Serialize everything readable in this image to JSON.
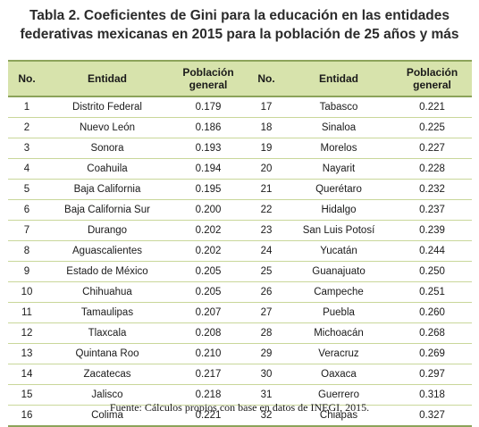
{
  "title": {
    "line1": "Tabla 2. Coeficientes de Gini para la educación en las entidades",
    "line2": "federativas mexicanas en 2015 para la población de 25 años y más"
  },
  "headers": {
    "no": "No.",
    "entidad": "Entidad",
    "poblacion_line1": "Población",
    "poblacion_line2": "general"
  },
  "rows": [
    {
      "left": {
        "no": "1",
        "entidad": "Distrito Federal",
        "valor": "0.179"
      },
      "right": {
        "no": "17",
        "entidad": "Tabasco",
        "valor": "0.221"
      }
    },
    {
      "left": {
        "no": "2",
        "entidad": "Nuevo León",
        "valor": "0.186"
      },
      "right": {
        "no": "18",
        "entidad": "Sinaloa",
        "valor": "0.225"
      }
    },
    {
      "left": {
        "no": "3",
        "entidad": "Sonora",
        "valor": "0.193"
      },
      "right": {
        "no": "19",
        "entidad": "Morelos",
        "valor": "0.227"
      }
    },
    {
      "left": {
        "no": "4",
        "entidad": "Coahuila",
        "valor": "0.194"
      },
      "right": {
        "no": "20",
        "entidad": "Nayarit",
        "valor": "0.228"
      }
    },
    {
      "left": {
        "no": "5",
        "entidad": "Baja California",
        "valor": "0.195"
      },
      "right": {
        "no": "21",
        "entidad": "Querétaro",
        "valor": "0.232"
      }
    },
    {
      "left": {
        "no": "6",
        "entidad": "Baja California Sur",
        "valor": "0.200"
      },
      "right": {
        "no": "22",
        "entidad": "Hidalgo",
        "valor": "0.237"
      }
    },
    {
      "left": {
        "no": "7",
        "entidad": "Durango",
        "valor": "0.202"
      },
      "right": {
        "no": "23",
        "entidad": "San Luis Potosí",
        "valor": "0.239"
      }
    },
    {
      "left": {
        "no": "8",
        "entidad": "Aguascalientes",
        "valor": "0.202"
      },
      "right": {
        "no": "24",
        "entidad": "Yucatán",
        "valor": "0.244"
      }
    },
    {
      "left": {
        "no": "9",
        "entidad": "Estado de México",
        "valor": "0.205"
      },
      "right": {
        "no": "25",
        "entidad": "Guanajuato",
        "valor": "0.250"
      }
    },
    {
      "left": {
        "no": "10",
        "entidad": "Chihuahua",
        "valor": "0.205"
      },
      "right": {
        "no": "26",
        "entidad": "Campeche",
        "valor": "0.251"
      }
    },
    {
      "left": {
        "no": "11",
        "entidad": "Tamaulipas",
        "valor": "0.207"
      },
      "right": {
        "no": "27",
        "entidad": "Puebla",
        "valor": "0.260"
      }
    },
    {
      "left": {
        "no": "12",
        "entidad": "Tlaxcala",
        "valor": "0.208"
      },
      "right": {
        "no": "28",
        "entidad": "Michoacán",
        "valor": "0.268"
      }
    },
    {
      "left": {
        "no": "13",
        "entidad": "Quintana Roo",
        "valor": "0.210"
      },
      "right": {
        "no": "29",
        "entidad": "Veracruz",
        "valor": "0.269"
      }
    },
    {
      "left": {
        "no": "14",
        "entidad": "Zacatecas",
        "valor": "0.217"
      },
      "right": {
        "no": "30",
        "entidad": "Oaxaca",
        "valor": "0.297"
      }
    },
    {
      "left": {
        "no": "15",
        "entidad": "Jalisco",
        "valor": "0.218"
      },
      "right": {
        "no": "31",
        "entidad": "Guerrero",
        "valor": "0.318"
      }
    },
    {
      "left": {
        "no": "16",
        "entidad": "Colima",
        "valor": "0.221"
      },
      "right": {
        "no": "32",
        "entidad": "Chiapas",
        "valor": "0.327"
      }
    }
  ],
  "source": "Fuente: Cálculos propios con base en datos de INEGI, 2015.",
  "colors": {
    "header_background": "#d7e3ac",
    "rule": "#8ca35a",
    "row_divider": "#c9d79a"
  }
}
